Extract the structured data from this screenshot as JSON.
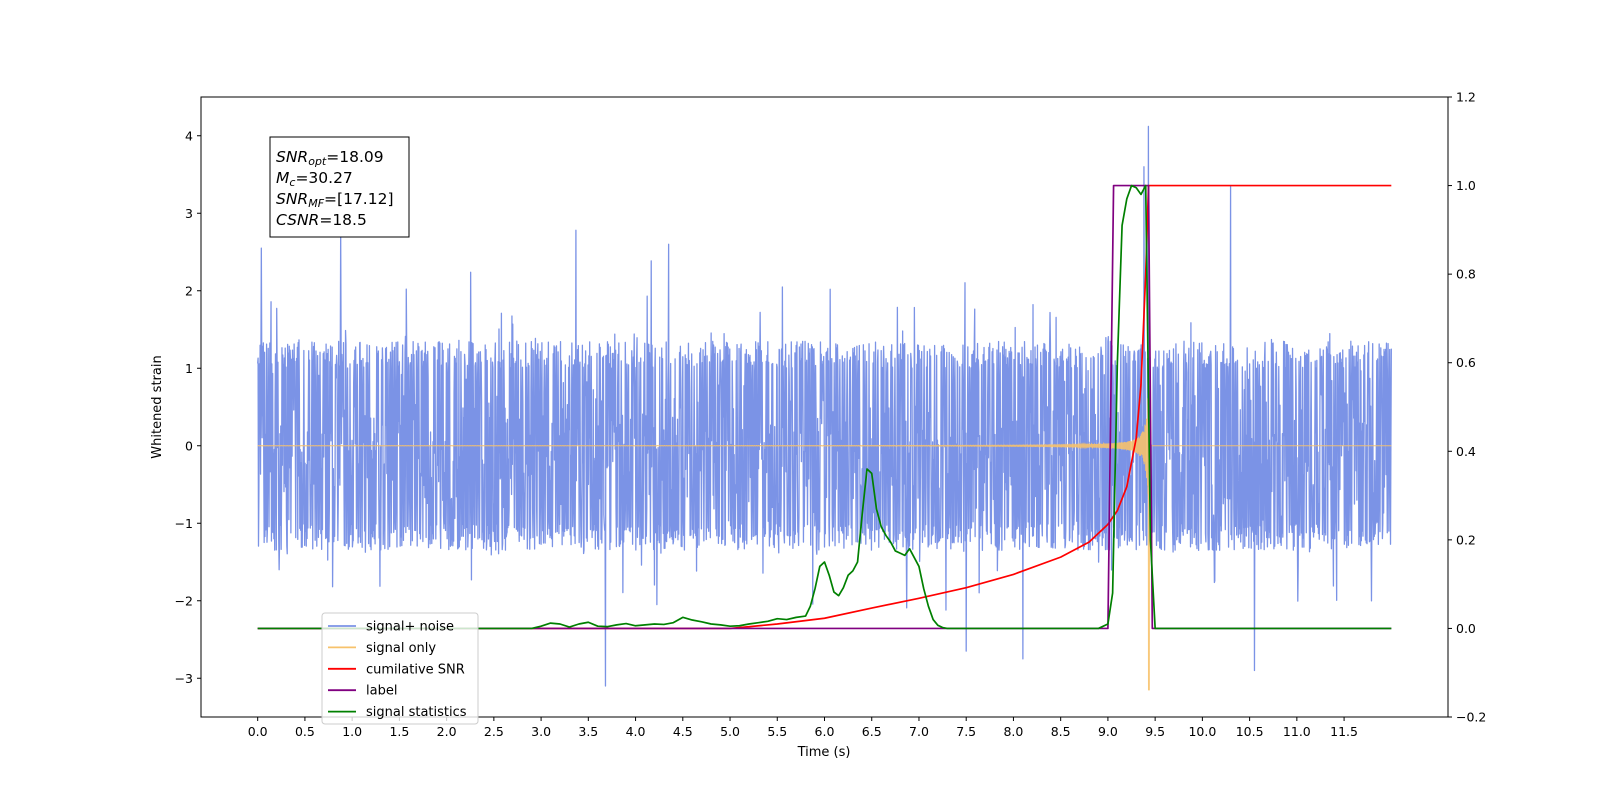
{
  "chart_data": {
    "type": "line",
    "title": "",
    "xlabel": "Time (s)",
    "ylabel": "Whitened strain",
    "y2label": "",
    "xlim": [
      -0.6,
      12.6
    ],
    "ylim": [
      -3.5,
      4.5
    ],
    "y2lim": [
      -0.2,
      1.2
    ],
    "x_ticks": [
      0.0,
      0.5,
      1.0,
      1.5,
      2.0,
      2.5,
      3.0,
      3.5,
      4.0,
      4.5,
      5.0,
      5.5,
      6.0,
      6.5,
      7.0,
      7.5,
      8.0,
      8.5,
      9.0,
      9.5,
      10.0,
      10.5,
      11.0,
      11.5
    ],
    "x_tick_labels": [
      "0.0",
      "0.5",
      "1.0",
      "1.5",
      "2.0",
      "2.5",
      "3.0",
      "3.5",
      "4.0",
      "4.5",
      "5.0",
      "5.5",
      "6.0",
      "6.5",
      "7.0",
      "7.5",
      "8.0",
      "8.5",
      "9.0",
      "9.5",
      "10.0",
      "10.5",
      "11.0",
      "11.5"
    ],
    "y_ticks": [
      -3,
      -2,
      -1,
      0,
      1,
      2,
      3,
      4
    ],
    "y_tick_labels": [
      "−3",
      "−2",
      "−1",
      "0",
      "1",
      "2",
      "3",
      "4"
    ],
    "y2_ticks": [
      -0.2,
      0.0,
      0.2,
      0.4,
      0.6,
      0.8,
      1.0,
      1.2
    ],
    "y2_tick_labels": [
      "−0.2",
      "0.0",
      "0.2",
      "0.4",
      "0.6",
      "0.8",
      "1.0",
      "1.2"
    ],
    "grid": false,
    "legend_placement": "lower-left",
    "annotation": [
      {
        "label_main": "SNR",
        "label_sub": "opt",
        "value": "=18.09"
      },
      {
        "label_main": "M",
        "label_sub": "c",
        "value": "=30.27"
      },
      {
        "label_main": "SNR",
        "label_sub": "MF",
        "value": "=[17.12]"
      },
      {
        "label_main": "CSNR",
        "label_sub": "",
        "value": "=18.5"
      }
    ],
    "series": [
      {
        "name": "signal+ noise",
        "axis": "left",
        "color": "#7b93e6",
        "x_range": [
          0.0,
          12.0
        ],
        "envelope": 1.4,
        "spike_points": [
          [
            0.04,
            2.55
          ],
          [
            0.88,
            2.75
          ],
          [
            3.37,
            2.78
          ],
          [
            3.68,
            -3.1
          ],
          [
            9.38,
            3.6
          ],
          [
            9.43,
            4.12
          ],
          [
            10.3,
            3.35
          ],
          [
            10.55,
            -2.9
          ],
          [
            4.35,
            2.6
          ],
          [
            7.5,
            -2.65
          ],
          [
            8.1,
            -2.75
          ]
        ]
      },
      {
        "name": "signal only",
        "axis": "left",
        "color": "#f7c26b",
        "chirp": {
          "t_merge": 9.43,
          "f0_hz": 20,
          "peak_amp": 3.3,
          "min_value": -3.15
        }
      },
      {
        "name": "cumilative SNR",
        "axis": "right",
        "color": "#ff0000",
        "x": [
          0.0,
          1.0,
          2.0,
          3.0,
          4.0,
          5.0,
          5.5,
          6.0,
          6.5,
          7.0,
          7.5,
          8.0,
          8.5,
          8.8,
          9.0,
          9.1,
          9.2,
          9.3,
          9.35,
          9.4,
          9.43,
          12.0
        ],
        "y": [
          0.0,
          0.0,
          0.0,
          0.0,
          0.0,
          0.0,
          0.01,
          0.023,
          0.046,
          0.068,
          0.092,
          0.122,
          0.161,
          0.195,
          0.235,
          0.266,
          0.32,
          0.43,
          0.55,
          0.8,
          1.0,
          1.0
        ]
      },
      {
        "name": "label",
        "axis": "right",
        "color": "#800080",
        "x": [
          0.0,
          9.0,
          9.06,
          9.43,
          9.47,
          12.0
        ],
        "y": [
          0.0,
          0.0,
          1.0,
          1.0,
          0.0,
          0.0
        ]
      },
      {
        "name": "signal statistics",
        "axis": "right",
        "color": "#008000",
        "x": [
          0.0,
          2.9,
          3.0,
          3.1,
          3.2,
          3.3,
          3.4,
          3.5,
          3.6,
          3.7,
          3.8,
          3.9,
          4.0,
          4.1,
          4.2,
          4.3,
          4.4,
          4.5,
          4.6,
          4.7,
          4.8,
          4.9,
          5.0,
          5.1,
          5.2,
          5.3,
          5.4,
          5.5,
          5.6,
          5.7,
          5.8,
          5.85,
          5.9,
          5.95,
          6.0,
          6.05,
          6.1,
          6.15,
          6.2,
          6.25,
          6.3,
          6.35,
          6.4,
          6.45,
          6.5,
          6.55,
          6.6,
          6.65,
          6.7,
          6.75,
          6.8,
          6.85,
          6.9,
          6.95,
          7.0,
          7.05,
          7.1,
          7.15,
          7.2,
          7.25,
          7.3,
          7.5,
          8.0,
          8.5,
          8.9,
          9.0,
          9.05,
          9.1,
          9.15,
          9.2,
          9.25,
          9.3,
          9.35,
          9.4,
          9.45,
          9.5,
          12.0
        ],
        "y": [
          0.0,
          0.0,
          0.005,
          0.012,
          0.01,
          0.003,
          0.01,
          0.014,
          0.005,
          0.004,
          0.008,
          0.011,
          0.006,
          0.008,
          0.01,
          0.009,
          0.013,
          0.025,
          0.019,
          0.015,
          0.01,
          0.008,
          0.005,
          0.006,
          0.01,
          0.013,
          0.016,
          0.022,
          0.02,
          0.025,
          0.028,
          0.05,
          0.09,
          0.14,
          0.15,
          0.12,
          0.082,
          0.074,
          0.092,
          0.12,
          0.13,
          0.15,
          0.26,
          0.36,
          0.35,
          0.27,
          0.23,
          0.21,
          0.195,
          0.175,
          0.17,
          0.165,
          0.18,
          0.16,
          0.14,
          0.09,
          0.05,
          0.02,
          0.007,
          0.002,
          0.0,
          0.0,
          0.0,
          0.0,
          0.0,
          0.01,
          0.08,
          0.6,
          0.91,
          0.97,
          1.0,
          0.995,
          0.98,
          1.0,
          0.2,
          0.0,
          0.0
        ]
      }
    ]
  }
}
